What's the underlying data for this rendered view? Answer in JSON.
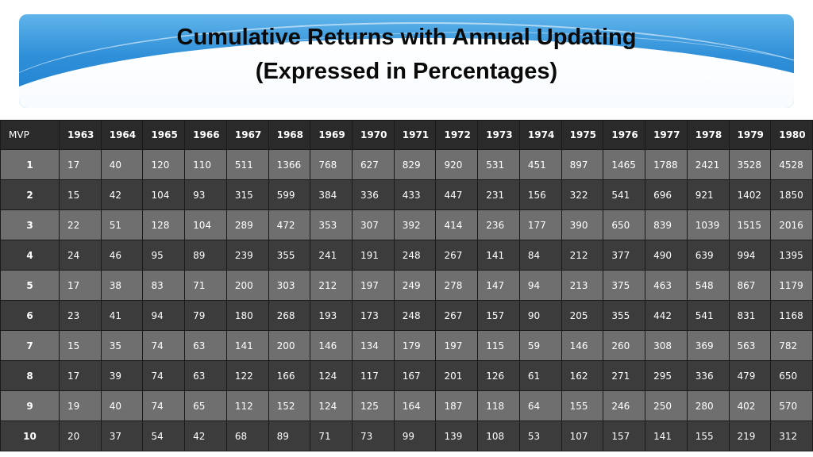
{
  "title": {
    "line1": "Cumulative Returns with Annual Updating",
    "line2": "(Expressed in Percentages)"
  },
  "table": {
    "corner_label": "MVP",
    "years": [
      "1963",
      "1964",
      "1965",
      "1966",
      "1967",
      "1968",
      "1969",
      "1970",
      "1971",
      "1972",
      "1973",
      "1974",
      "1975",
      "1976",
      "1977",
      "1978",
      "1979",
      "1980"
    ],
    "rows": [
      {
        "mvp": "1",
        "values": [
          "17",
          "40",
          "120",
          "110",
          "511",
          "1366",
          "768",
          "627",
          "829",
          "920",
          "531",
          "451",
          "897",
          "1465",
          "1788",
          "2421",
          "3528",
          "4528"
        ]
      },
      {
        "mvp": "2",
        "values": [
          "15",
          "42",
          "104",
          "93",
          "315",
          "599",
          "384",
          "336",
          "433",
          "447",
          "231",
          "156",
          "322",
          "541",
          "696",
          "921",
          "1402",
          "1850"
        ]
      },
      {
        "mvp": "3",
        "values": [
          "22",
          "51",
          "128",
          "104",
          "289",
          "472",
          "353",
          "307",
          "392",
          "414",
          "236",
          "177",
          "390",
          "650",
          "839",
          "1039",
          "1515",
          "2016"
        ]
      },
      {
        "mvp": "4",
        "values": [
          "24",
          "46",
          "95",
          "89",
          "239",
          "355",
          "241",
          "191",
          "248",
          "267",
          "141",
          "84",
          "212",
          "377",
          "490",
          "639",
          "994",
          "1395"
        ]
      },
      {
        "mvp": "5",
        "values": [
          "17",
          "38",
          "83",
          "71",
          "200",
          "303",
          "212",
          "197",
          "249",
          "278",
          "147",
          "94",
          "213",
          "375",
          "463",
          "548",
          "867",
          "1179"
        ]
      },
      {
        "mvp": "6",
        "values": [
          "23",
          "41",
          "94",
          "79",
          "180",
          "268",
          "193",
          "173",
          "248",
          "267",
          "157",
          "90",
          "205",
          "355",
          "442",
          "541",
          "831",
          "1168"
        ]
      },
      {
        "mvp": "7",
        "values": [
          "15",
          "35",
          "74",
          "63",
          "141",
          "200",
          "146",
          "134",
          "179",
          "197",
          "115",
          "59",
          "146",
          "260",
          "308",
          "369",
          "563",
          "782"
        ]
      },
      {
        "mvp": "8",
        "values": [
          "17",
          "39",
          "74",
          "63",
          "122",
          "166",
          "124",
          "117",
          "167",
          "201",
          "126",
          "61",
          "162",
          "271",
          "295",
          "336",
          "479",
          "650"
        ]
      },
      {
        "mvp": "9",
        "values": [
          "19",
          "40",
          "74",
          "65",
          "112",
          "152",
          "124",
          "125",
          "164",
          "187",
          "118",
          "64",
          "155",
          "246",
          "250",
          "280",
          "402",
          "570"
        ]
      },
      {
        "mvp": "10",
        "values": [
          "20",
          "37",
          "54",
          "42",
          "68",
          "89",
          "71",
          "73",
          "99",
          "139",
          "108",
          "53",
          "107",
          "157",
          "141",
          "155",
          "219",
          "312"
        ]
      }
    ]
  },
  "colors": {
    "banner": "#2f8fd8",
    "header_row": "#2a2a2a",
    "row_light": "#6f6f6f",
    "row_dark": "#3c3c3c"
  }
}
